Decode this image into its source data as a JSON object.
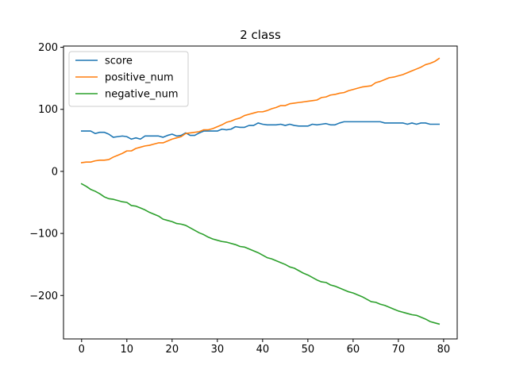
{
  "chart_data": {
    "type": "line",
    "title": "2 class",
    "xlabel": "",
    "ylabel": "",
    "xlim": [
      -4,
      83
    ],
    "ylim": [
      -270,
      202
    ],
    "xticks": [
      0,
      10,
      20,
      30,
      40,
      50,
      60,
      70,
      80
    ],
    "yticks": [
      -200,
      -100,
      0,
      100,
      200
    ],
    "ytick_labels": [
      "−200",
      "−100",
      "0",
      "100",
      "200"
    ],
    "grid": false,
    "legend_position": "top-left",
    "series": [
      {
        "name": "score",
        "color": "#1f77b4",
        "x": [
          0,
          1,
          2,
          3,
          4,
          5,
          6,
          7,
          8,
          9,
          10,
          11,
          12,
          13,
          14,
          15,
          16,
          17,
          18,
          19,
          20,
          21,
          22,
          23,
          24,
          25,
          26,
          27,
          28,
          29,
          30,
          31,
          32,
          33,
          34,
          35,
          36,
          37,
          38,
          39,
          40,
          41,
          42,
          43,
          44,
          45,
          46,
          47,
          48,
          49,
          50,
          51,
          52,
          53,
          54,
          55,
          56,
          57,
          58,
          59,
          60,
          61,
          62,
          63,
          64,
          65,
          66,
          67,
          68,
          69,
          70,
          71,
          72,
          73,
          74,
          75,
          76,
          77,
          78,
          79
        ],
        "values": [
          65,
          65,
          65,
          61,
          63,
          63,
          60,
          55,
          56,
          57,
          56,
          52,
          54,
          52,
          57,
          57,
          57,
          57,
          55,
          58,
          60,
          57,
          58,
          62,
          58,
          58,
          62,
          65,
          65,
          65,
          65,
          68,
          67,
          68,
          72,
          71,
          71,
          74,
          74,
          78,
          76,
          75,
          75,
          75,
          76,
          74,
          76,
          74,
          73,
          73,
          73,
          76,
          75,
          76,
          77,
          75,
          75,
          78,
          80,
          80,
          80,
          80,
          80,
          80,
          80,
          80,
          80,
          78,
          78,
          78,
          78,
          78,
          76,
          78,
          76,
          78,
          78,
          76,
          76,
          76
        ]
      },
      {
        "name": "positive_num",
        "color": "#ff7f0e",
        "x": [
          0,
          1,
          2,
          3,
          4,
          5,
          6,
          7,
          8,
          9,
          10,
          11,
          12,
          13,
          14,
          15,
          16,
          17,
          18,
          19,
          20,
          21,
          22,
          23,
          24,
          25,
          26,
          27,
          28,
          29,
          30,
          31,
          32,
          33,
          34,
          35,
          36,
          37,
          38,
          39,
          40,
          41,
          42,
          43,
          44,
          45,
          46,
          47,
          48,
          49,
          50,
          51,
          52,
          53,
          54,
          55,
          56,
          57,
          58,
          59,
          60,
          61,
          62,
          63,
          64,
          65,
          66,
          67,
          68,
          69,
          70,
          71,
          72,
          73,
          74,
          75,
          76,
          77,
          78,
          79
        ],
        "values": [
          14,
          15,
          15,
          17,
          18,
          18,
          19,
          23,
          26,
          29,
          33,
          33,
          37,
          39,
          41,
          42,
          44,
          46,
          46,
          49,
          52,
          54,
          56,
          61,
          62,
          63,
          64,
          67,
          67,
          69,
          72,
          75,
          79,
          81,
          84,
          86,
          90,
          92,
          94,
          96,
          96,
          98,
          101,
          103,
          106,
          106,
          109,
          110,
          111,
          112,
          113,
          114,
          115,
          119,
          120,
          123,
          124,
          126,
          127,
          130,
          132,
          134,
          136,
          137,
          138,
          143,
          145,
          148,
          151,
          152,
          154,
          156,
          159,
          162,
          165,
          168,
          172,
          174,
          177,
          182
        ]
      },
      {
        "name": "negative_num",
        "color": "#2ca02c",
        "x": [
          0,
          1,
          2,
          3,
          4,
          5,
          6,
          7,
          8,
          9,
          10,
          11,
          12,
          13,
          14,
          15,
          16,
          17,
          18,
          19,
          20,
          21,
          22,
          23,
          24,
          25,
          26,
          27,
          28,
          29,
          30,
          31,
          32,
          33,
          34,
          35,
          36,
          37,
          38,
          39,
          40,
          41,
          42,
          43,
          44,
          45,
          46,
          47,
          48,
          49,
          50,
          51,
          52,
          53,
          54,
          55,
          56,
          57,
          58,
          59,
          60,
          61,
          62,
          63,
          64,
          65,
          66,
          67,
          68,
          69,
          70,
          71,
          72,
          73,
          74,
          75,
          76,
          77,
          78,
          79
        ],
        "values": [
          -20,
          -24,
          -29,
          -32,
          -36,
          -41,
          -44,
          -45,
          -47,
          -49,
          -50,
          -55,
          -56,
          -59,
          -62,
          -66,
          -69,
          -72,
          -77,
          -79,
          -81,
          -84,
          -85,
          -87,
          -91,
          -95,
          -99,
          -102,
          -106,
          -109,
          -111,
          -113,
          -114,
          -116,
          -118,
          -121,
          -122,
          -125,
          -128,
          -131,
          -135,
          -139,
          -141,
          -144,
          -147,
          -150,
          -154,
          -156,
          -160,
          -164,
          -167,
          -171,
          -175,
          -178,
          -179,
          -183,
          -185,
          -188,
          -191,
          -194,
          -196,
          -199,
          -202,
          -206,
          -210,
          -211,
          -214,
          -216,
          -219,
          -222,
          -225,
          -227,
          -229,
          -231,
          -232,
          -235,
          -238,
          -242,
          -244,
          -246
        ]
      }
    ]
  }
}
